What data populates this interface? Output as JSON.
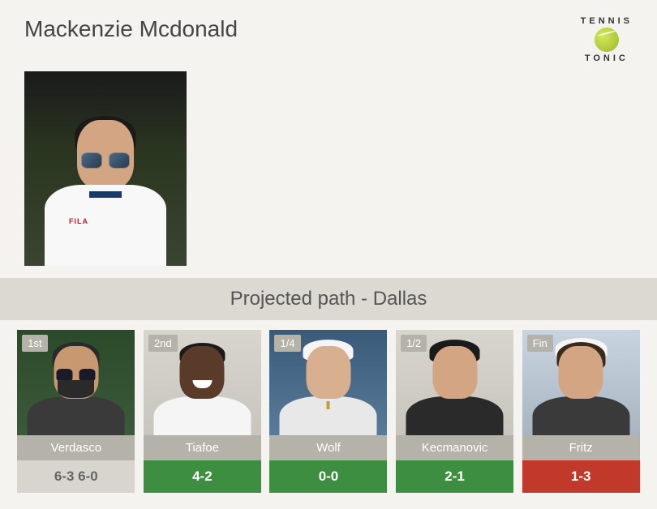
{
  "player_name": "Mackenzie Mcdonald",
  "logo": {
    "top": "TENNIS",
    "bottom": "TONIC"
  },
  "main_player_brand": "FILA",
  "projected": {
    "title": "Projected path - Dallas"
  },
  "opponents": [
    {
      "round": "1st",
      "name": "Verdasco",
      "score": "6-3 6-0",
      "score_class": "score-neutral",
      "bg_class": "bg-verdasco",
      "portrait_class": "verdasco"
    },
    {
      "round": "2nd",
      "name": "Tiafoe",
      "score": "4-2",
      "score_class": "score-green",
      "bg_class": "bg-tiafoe",
      "portrait_class": "tiafoe"
    },
    {
      "round": "1/4",
      "name": "Wolf",
      "score": "0-0",
      "score_class": "score-green",
      "bg_class": "bg-wolf",
      "portrait_class": "wolf"
    },
    {
      "round": "1/2",
      "name": "Kecmanovic",
      "score": "2-1",
      "score_class": "score-green",
      "bg_class": "bg-kecmanovic",
      "portrait_class": "kecmanovic"
    },
    {
      "round": "Fin",
      "name": "Fritz",
      "score": "1-3",
      "score_class": "score-red",
      "bg_class": "bg-fritz",
      "portrait_class": "fritz"
    }
  ],
  "colors": {
    "background": "#f5f3ef",
    "section_bg": "#dcd9d2",
    "badge_bg": "#b5b2a9",
    "neutral_bg": "#d8d5ce",
    "green": "#3e8e41",
    "red": "#c0392b"
  }
}
